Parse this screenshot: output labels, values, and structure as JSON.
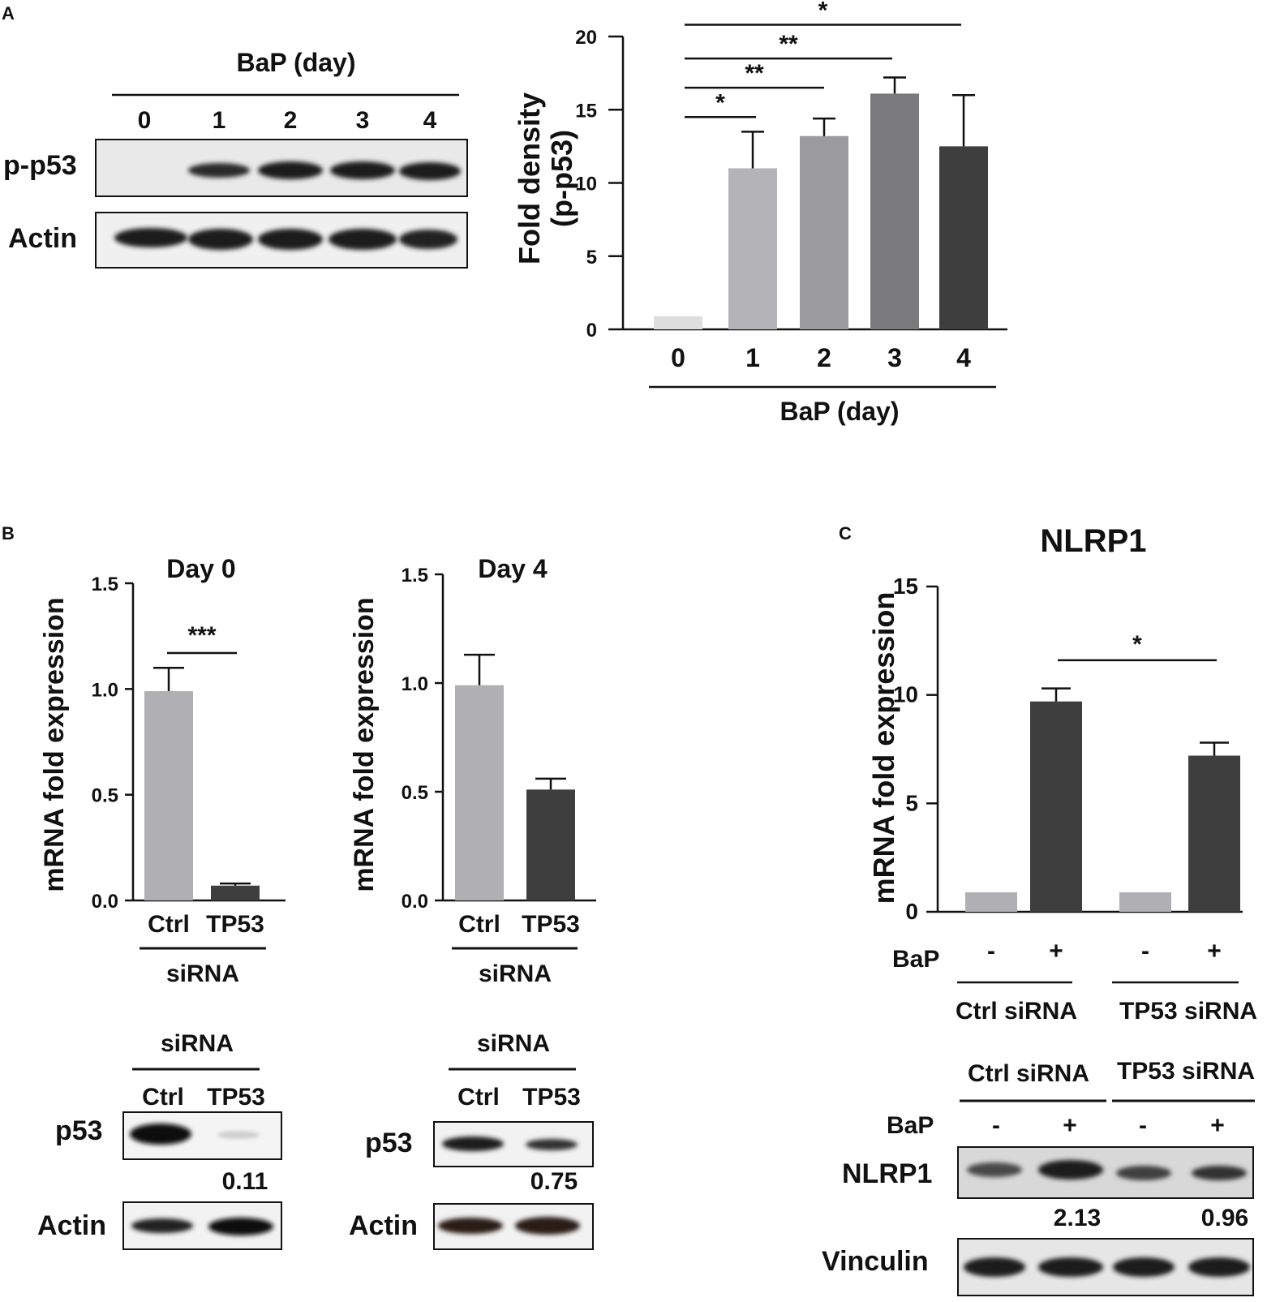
{
  "panel_letters": {
    "a": "A",
    "b": "B",
    "c": "C"
  },
  "panelA_blot": {
    "header": "BaP (day)",
    "lanes": [
      "0",
      "1",
      "2",
      "3",
      "4"
    ],
    "rows": [
      "p-p53",
      "Actin"
    ]
  },
  "panelB_blots": [
    {
      "header": "siRNA",
      "lanes": [
        "Ctrl",
        "TP53"
      ],
      "rows": [
        "p53",
        "Actin"
      ],
      "quant": "0.11"
    },
    {
      "header": "siRNA",
      "lanes": [
        "Ctrl",
        "TP53"
      ],
      "rows": [
        "p53",
        "Actin"
      ],
      "quant": "0.75"
    }
  ],
  "panelC_blot": {
    "groups": [
      "Ctrl siRNA",
      "TP53 siRNA"
    ],
    "bap_label": "BaP",
    "bap_signs": [
      "-",
      "+",
      "-",
      "+"
    ],
    "rows": [
      "NLRP1",
      "Vinculin"
    ],
    "quants": [
      "2.13",
      "0.96"
    ]
  },
  "chart_data": [
    {
      "id": "A",
      "type": "bar",
      "title": "",
      "ylabel_lines": [
        "Fold density",
        "(p-p53)"
      ],
      "xlabel": "BaP (day)",
      "categories": [
        "0",
        "1",
        "2",
        "3",
        "4"
      ],
      "values": [
        0.9,
        11.0,
        13.2,
        16.1,
        12.5
      ],
      "errors": [
        0,
        2.5,
        1.2,
        1.1,
        3.5
      ],
      "colors": [
        "#dedede",
        "#b4b4b8",
        "#9b9b9e",
        "#7a7a7c",
        "#3e3e3f"
      ],
      "ylim": [
        0,
        20
      ],
      "yticks": [
        "0",
        "5",
        "10",
        "15",
        "20"
      ],
      "ytick_values": [
        0,
        5,
        10,
        15,
        20
      ],
      "significance": [
        {
          "from": 0,
          "to": 1,
          "label": "*",
          "y": 14.5
        },
        {
          "from": 0,
          "to": 2,
          "label": "**",
          "y": 16.5
        },
        {
          "from": 0,
          "to": 3,
          "label": "**",
          "y": 18.5
        },
        {
          "from": 0,
          "to": 4,
          "label": "*",
          "y": 20.8
        }
      ]
    },
    {
      "id": "B-day0",
      "type": "bar",
      "title": "Day 0",
      "ylabel": "mRNA fold expression",
      "xlabel": "siRNA",
      "categories": [
        "Ctrl",
        "TP53"
      ],
      "values": [
        0.99,
        0.07
      ],
      "errors": [
        0.11,
        0.01
      ],
      "colors": [
        "#b0b0b4",
        "#3e3e3f"
      ],
      "ylim": [
        0,
        1.5
      ],
      "yticks": [
        "0.0",
        "0.5",
        "1.0",
        "1.5"
      ],
      "ytick_values": [
        0,
        0.5,
        1.0,
        1.5
      ],
      "significance": [
        {
          "from": 0,
          "to": 1,
          "label": "***",
          "y": 1.17
        }
      ]
    },
    {
      "id": "B-day4",
      "type": "bar",
      "title": "Day 4",
      "ylabel": "mRNA fold expression",
      "xlabel": "siRNA",
      "categories": [
        "Ctrl",
        "TP53"
      ],
      "values": [
        0.99,
        0.51
      ],
      "errors": [
        0.14,
        0.05
      ],
      "colors": [
        "#b0b0b4",
        "#3e3e3f"
      ],
      "ylim": [
        0,
        1.5
      ],
      "yticks": [
        "0.0",
        "0.5",
        "1.0",
        "1.5"
      ],
      "ytick_values": [
        0,
        0.5,
        1.0,
        1.5
      ],
      "significance": []
    },
    {
      "id": "C",
      "type": "bar",
      "title": "NLRP1",
      "ylabel": "mRNA fold expression",
      "categories": [
        "-",
        "+",
        "-",
        "+"
      ],
      "category_label": "BaP",
      "groups": [
        "Ctrl siRNA",
        "TP53 siRNA"
      ],
      "values": [
        0.9,
        9.7,
        0.9,
        7.2
      ],
      "errors": [
        0,
        0.6,
        0,
        0.6
      ],
      "colors": [
        "#b0b0b4",
        "#3e3e3f",
        "#b0b0b4",
        "#3e3e3f"
      ],
      "ylim": [
        0,
        15
      ],
      "yticks": [
        "0",
        "5",
        "10",
        "15"
      ],
      "ytick_values": [
        0,
        5,
        10,
        15
      ],
      "significance": [
        {
          "from": 1,
          "to": 3,
          "label": "*",
          "y": 11.6
        }
      ]
    }
  ]
}
